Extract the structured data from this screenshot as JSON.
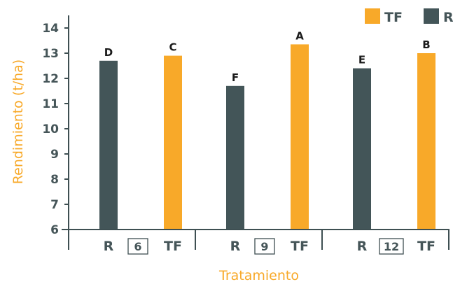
{
  "chart_data": {
    "type": "bar",
    "xlabel": "Tratamiento",
    "ylabel": "Rendimiento (t/ha)",
    "ylim": [
      6,
      14
    ],
    "yticks": [
      6,
      7,
      8,
      9,
      10,
      11,
      12,
      13,
      14
    ],
    "groups": [
      {
        "name": "6",
        "bars": [
          {
            "series": "R",
            "value": 12.7,
            "label": "D"
          },
          {
            "series": "TF",
            "value": 12.9,
            "label": "C"
          }
        ]
      },
      {
        "name": "9",
        "bars": [
          {
            "series": "R",
            "value": 11.7,
            "label": "F"
          },
          {
            "series": "TF",
            "value": 13.35,
            "label": "A"
          }
        ]
      },
      {
        "name": "12",
        "bars": [
          {
            "series": "R",
            "value": 12.4,
            "label": "E"
          },
          {
            "series": "TF",
            "value": 13.0,
            "label": "B"
          }
        ]
      }
    ],
    "legend": [
      {
        "name": "TF",
        "color": "#f8a929"
      },
      {
        "name": "R",
        "color": "#435558"
      }
    ],
    "legend_position": "top-right",
    "grid": false
  }
}
